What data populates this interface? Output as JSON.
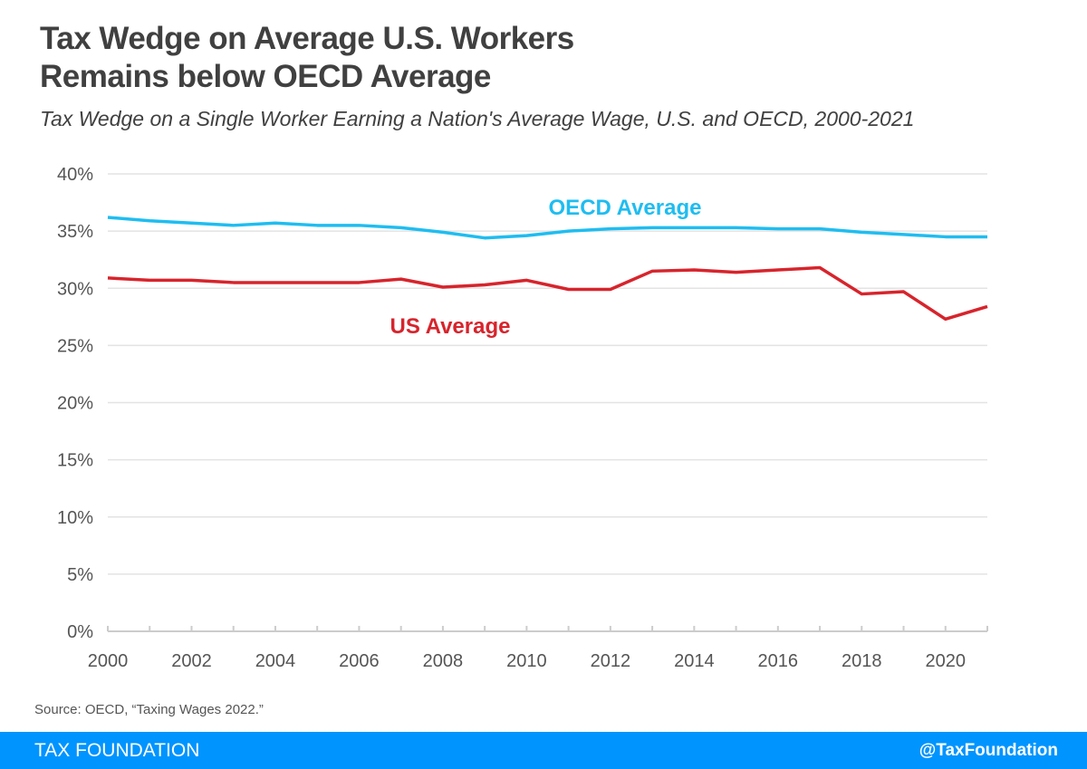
{
  "title_line1": "Tax Wedge on Average U.S. Workers",
  "title_line2": "Remains below OECD Average",
  "subtitle": "Tax Wedge on a Single Worker Earning a Nation's Average Wage, U.S. and OECD, 2000-2021",
  "source": "Source: OECD, “Taxing Wages 2022.”",
  "footer": {
    "brand": "TAX FOUNDATION",
    "handle": "@TaxFoundation"
  },
  "chart_data": {
    "type": "line",
    "x": [
      2000,
      2001,
      2002,
      2003,
      2004,
      2005,
      2006,
      2007,
      2008,
      2009,
      2010,
      2011,
      2012,
      2013,
      2014,
      2015,
      2016,
      2017,
      2018,
      2019,
      2020,
      2021
    ],
    "series": [
      {
        "name": "OECD Average",
        "color": "#1fbdf0",
        "values": [
          36.2,
          35.9,
          35.7,
          35.5,
          35.7,
          35.5,
          35.5,
          35.3,
          34.9,
          34.4,
          34.6,
          35.0,
          35.2,
          35.3,
          35.3,
          35.3,
          35.2,
          35.2,
          34.9,
          34.7,
          34.5,
          34.5
        ]
      },
      {
        "name": "US Average",
        "color": "#d7242c",
        "values": [
          30.9,
          30.7,
          30.7,
          30.5,
          30.5,
          30.5,
          30.5,
          30.8,
          30.1,
          30.3,
          30.7,
          29.9,
          29.9,
          31.5,
          31.6,
          31.4,
          31.6,
          31.8,
          29.5,
          29.7,
          27.3,
          28.4
        ]
      }
    ],
    "ylim": [
      0,
      40
    ],
    "yticks": [
      "0%",
      "5%",
      "10%",
      "15%",
      "20%",
      "25%",
      "30%",
      "35%",
      "40%"
    ],
    "xticks": [
      "2000",
      "2002",
      "2004",
      "2006",
      "2008",
      "2010",
      "2012",
      "2014",
      "2016",
      "2018",
      "2020"
    ],
    "grid": true,
    "legend": "inline labels"
  }
}
